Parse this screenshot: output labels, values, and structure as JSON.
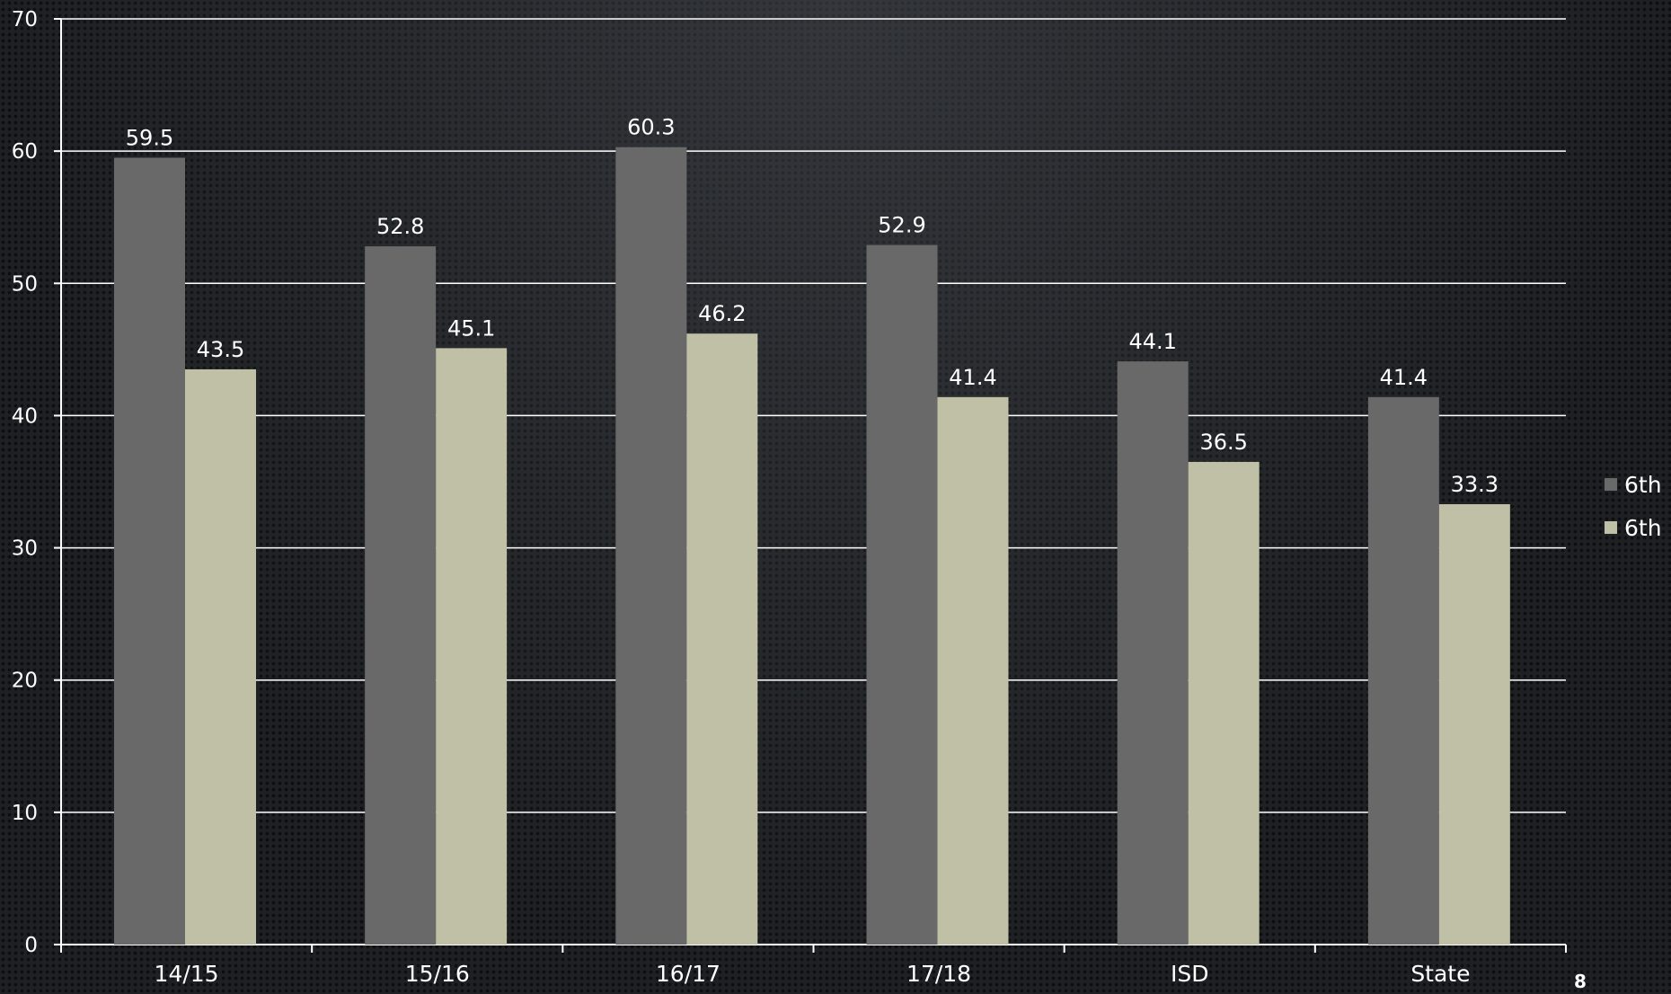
{
  "chart_data": {
    "type": "bar",
    "title": "",
    "xlabel": "",
    "ylabel": "",
    "categories": [
      "14/15",
      "15/16",
      "16/17",
      "17/18",
      "ISD",
      "State"
    ],
    "series": [
      {
        "name": "6th",
        "color": "#696969",
        "values": [
          59.5,
          52.8,
          60.3,
          52.9,
          44.1,
          41.4
        ]
      },
      {
        "name": "6th",
        "color": "#c0c0a6",
        "values": [
          43.5,
          45.1,
          46.2,
          41.4,
          36.5,
          33.3
        ]
      }
    ],
    "ylim": [
      0,
      70
    ],
    "yticks": [
      "0",
      "10",
      "20",
      "30",
      "40",
      "50",
      "60",
      "70"
    ],
    "grid": true,
    "legend_position": "right"
  },
  "slide": {
    "page_number": "8"
  },
  "colors": {
    "gridline": "#ffffff",
    "text": "#ffffff",
    "background": "#1e2023"
  }
}
